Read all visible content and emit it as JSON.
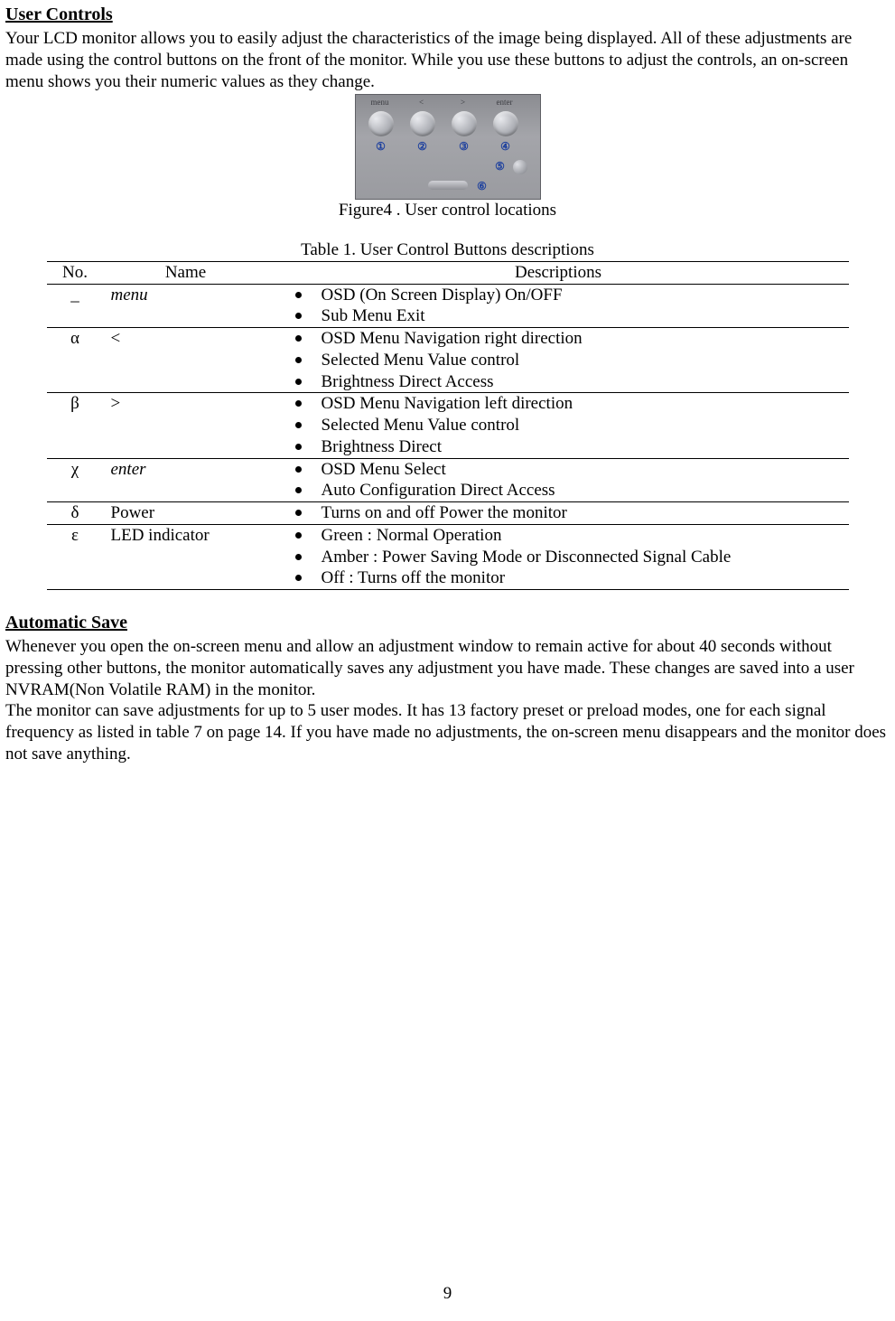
{
  "section1": {
    "heading": "User Controls",
    "para": "Your LCD monitor allows you to easily adjust the characteristics of the image being displayed. All of these adjustments are made using the control buttons on the front of the monitor. While you use these buttons to adjust the controls, an on-screen menu shows you their numeric values as they change."
  },
  "figure": {
    "caption": "Figure4 . User control locations",
    "top_labels": [
      "menu",
      "<",
      ">",
      "enter"
    ],
    "num_labels": [
      "①",
      "②",
      "③",
      "④"
    ],
    "num5": "⑤",
    "num6": "⑥"
  },
  "table": {
    "caption": "Table 1. User Control Buttons descriptions",
    "headers": [
      "No.",
      "Name",
      "Descriptions"
    ],
    "rows": [
      {
        "no": "_",
        "name": "menu",
        "name_italic": true,
        "desc": [
          "OSD (On Screen Display) On/OFF",
          "Sub Menu Exit"
        ]
      },
      {
        "no": "α",
        "name": "<",
        "name_italic": false,
        "desc": [
          "OSD Menu Navigation right direction",
          "Selected Menu Value control",
          "Brightness Direct Access"
        ]
      },
      {
        "no": "β",
        "name": ">",
        "name_italic": false,
        "desc": [
          "OSD Menu Navigation left direction",
          "Selected Menu Value control",
          "Brightness Direct"
        ]
      },
      {
        "no": "χ",
        "name": "enter",
        "name_italic": true,
        "desc": [
          "OSD Menu Select",
          "Auto Configuration Direct Access"
        ]
      },
      {
        "no": "δ",
        "name": "Power",
        "name_italic": false,
        "desc": [
          "Turns on and off Power the monitor"
        ]
      },
      {
        "no": "ε",
        "name": "LED indicator",
        "name_italic": false,
        "desc": [
          "Green : Normal Operation",
          "Amber : Power Saving Mode or Disconnected Signal Cable",
          "Off : Turns off the monitor"
        ]
      }
    ]
  },
  "section2": {
    "heading": "Automatic Save",
    "para": "Whenever you open the on-screen menu and allow an adjustment window to remain active for about 40 seconds without pressing other buttons, the monitor automatically saves any adjustment you have made. These changes are saved into a user NVRAM(Non Volatile RAM)  in the monitor.\nThe monitor can save adjustments for up to 5 user modes. It has 13 factory preset or preload modes, one for each signal frequency as listed in table 7 on page 14. If you have made no adjustments, the on-screen menu disappears and the monitor does not save anything."
  },
  "page_number": "9"
}
